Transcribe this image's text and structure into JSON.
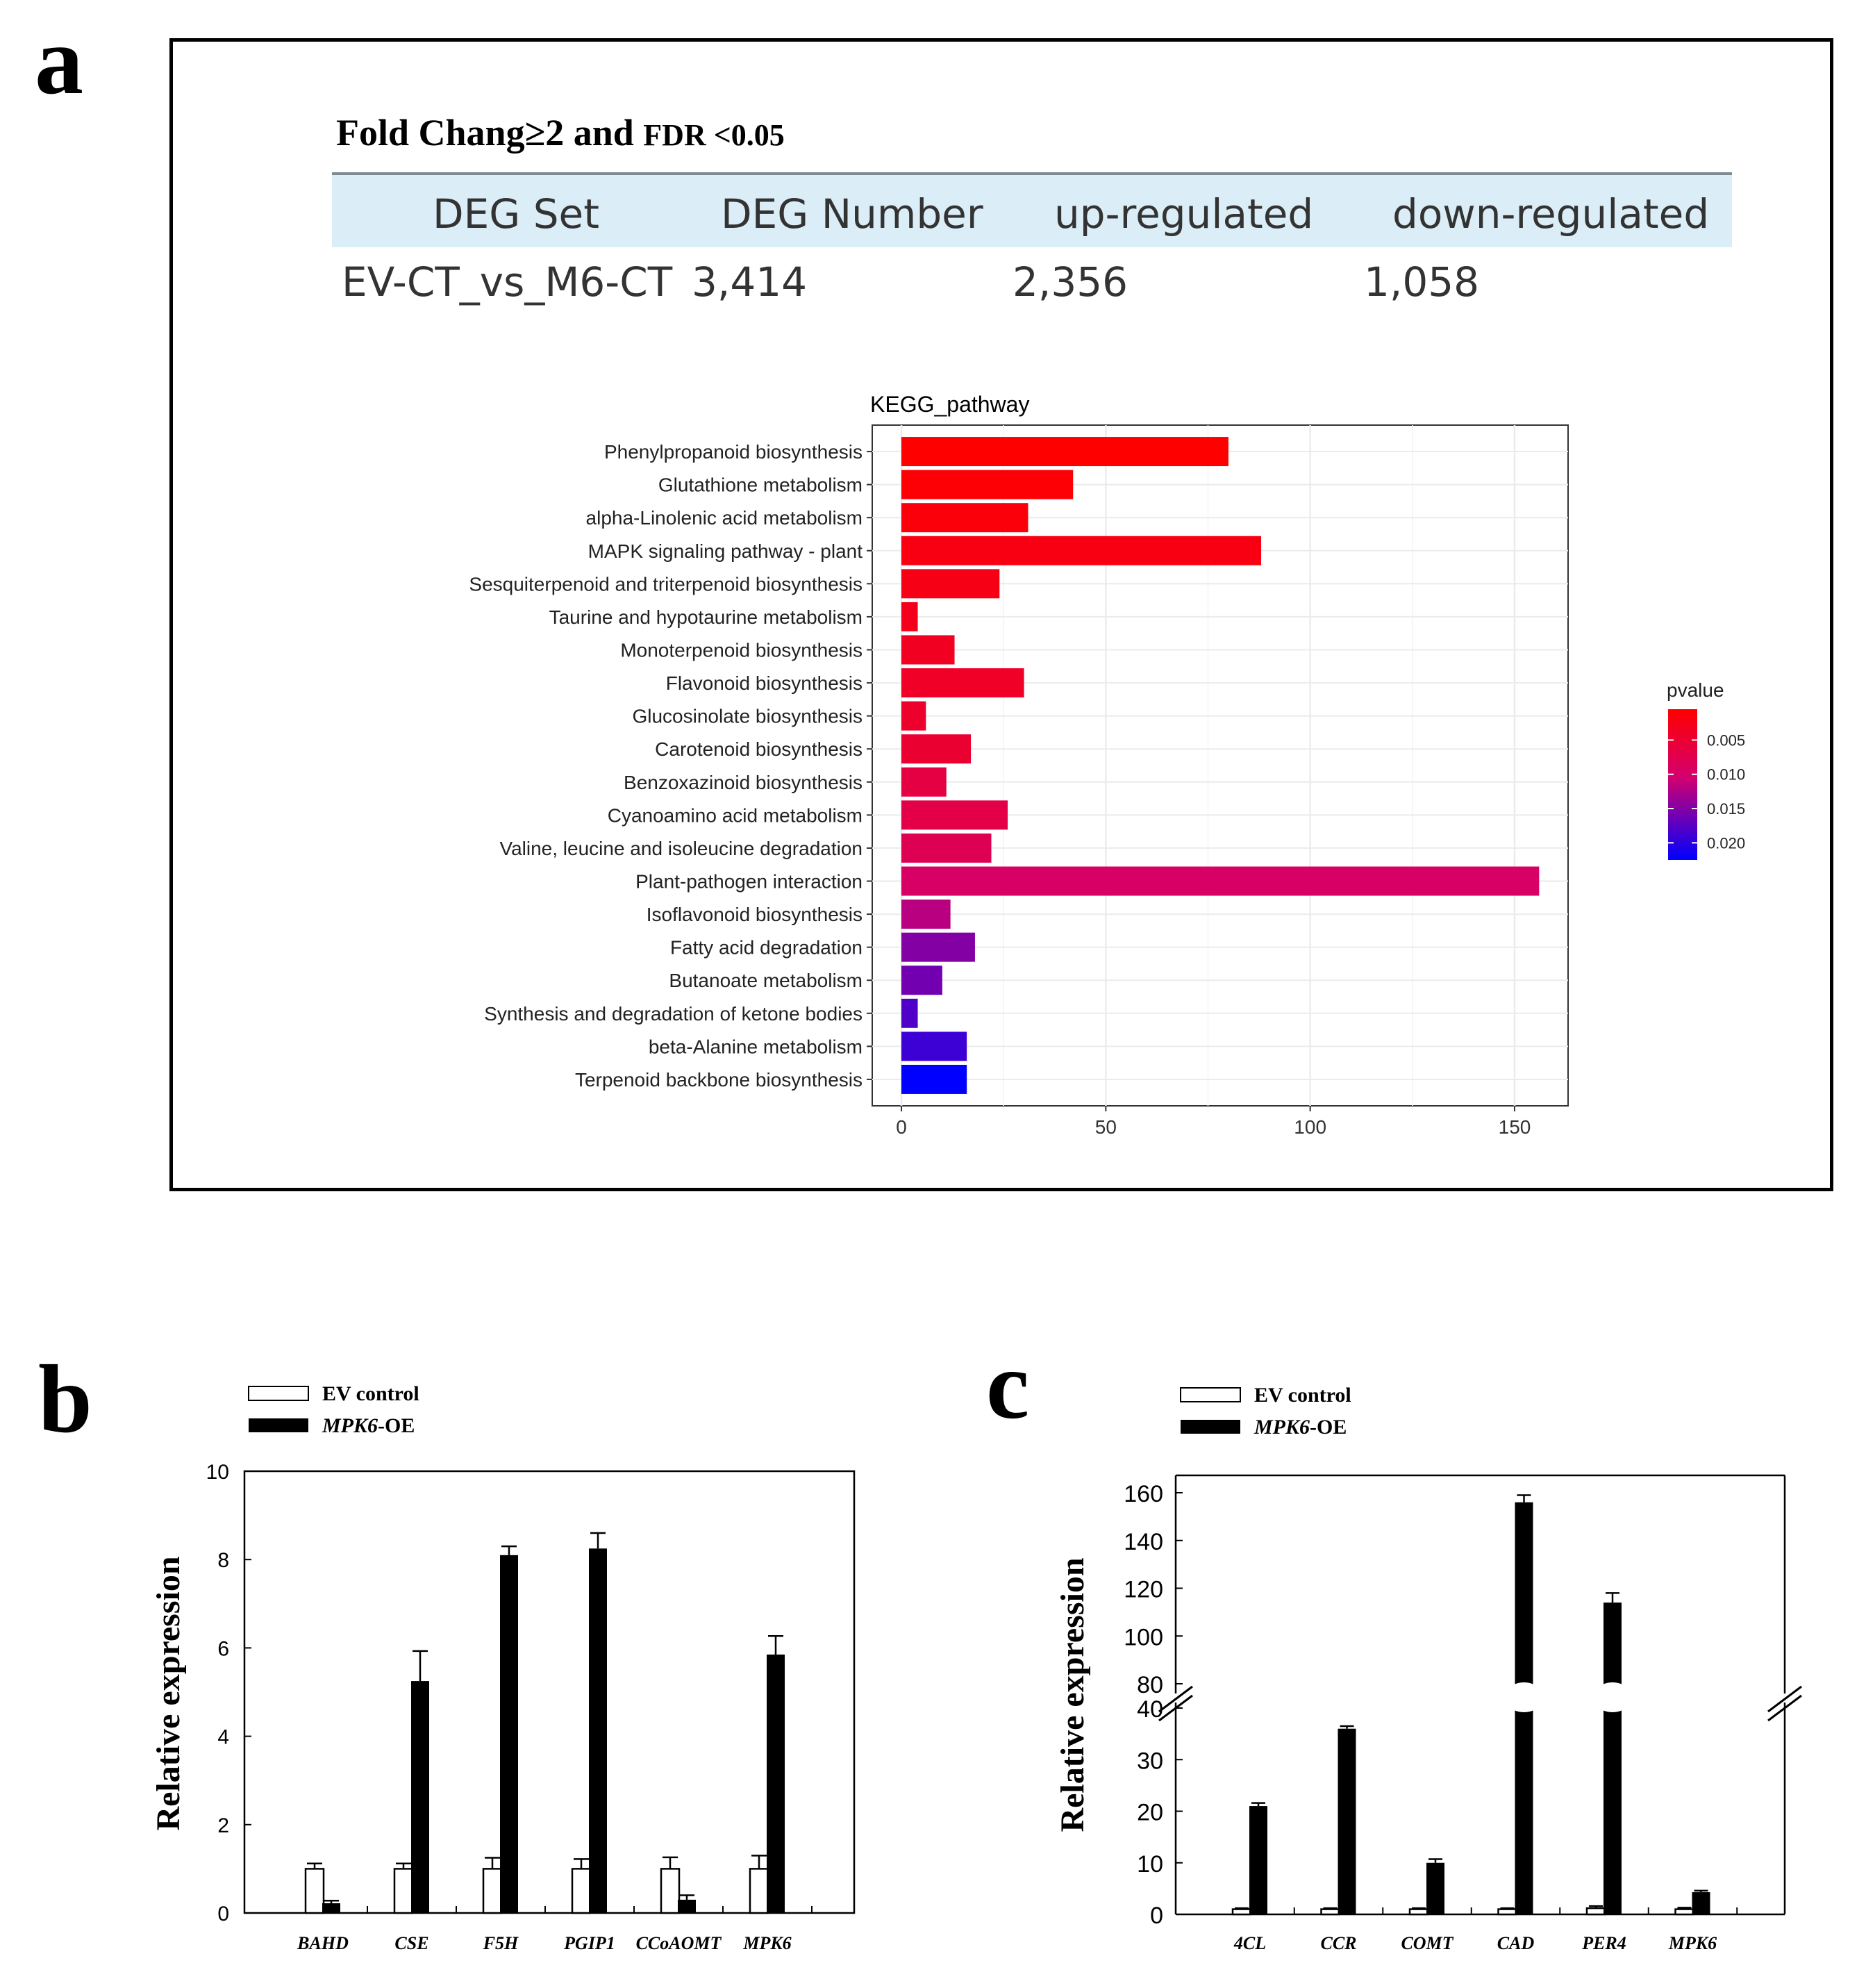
{
  "panels": {
    "a": "a",
    "b": "b",
    "c": "c"
  },
  "criteria": {
    "fold": "Fold Chang≥2",
    "and": "and",
    "fdr": "FDR <0.05"
  },
  "deg_table": {
    "headers": [
      "DEG Set",
      "DEG Number",
      "up-regulated",
      "down-regulated"
    ],
    "row": [
      "EV-CT_vs_M6-CT",
      "3,414",
      "2,356",
      "1,058"
    ]
  },
  "colors": {
    "high": "#ff0000",
    "mid": "#d4006e",
    "low": "#0000ff",
    "bar_black": "#000000",
    "bar_white": "#ffffff",
    "grid": "#ebebeb"
  },
  "chart_data": [
    {
      "type": "bar",
      "orientation": "horizontal",
      "title": "KEGG_pathway",
      "categories": [
        "Phenylpropanoid biosynthesis",
        "Glutathione metabolism",
        "alpha-Linolenic acid metabolism",
        "MAPK signaling pathway - plant",
        "Sesquiterpenoid and triterpenoid biosynthesis",
        "Taurine and hypotaurine metabolism",
        "Monoterpenoid biosynthesis",
        "Flavonoid biosynthesis",
        "Glucosinolate biosynthesis",
        "Carotenoid biosynthesis",
        "Benzoxazinoid biosynthesis",
        "Cyanoamino acid metabolism",
        "Valine, leucine and isoleucine degradation",
        "Plant-pathogen interaction",
        "Isoflavonoid biosynthesis",
        "Fatty acid degradation",
        "Butanoate metabolism",
        "Synthesis and degradation of ketone bodies",
        "beta-Alanine metabolism",
        "Terpenoid backbone biosynthesis"
      ],
      "values": [
        80,
        42,
        31,
        88,
        24,
        4,
        13,
        30,
        6,
        17,
        11,
        26,
        22,
        156,
        12,
        18,
        10,
        4,
        16,
        16
      ],
      "pvalues": [
        0.0005,
        0.001,
        0.0015,
        0.002,
        0.0025,
        0.003,
        0.0035,
        0.004,
        0.0045,
        0.005,
        0.0065,
        0.007,
        0.008,
        0.0095,
        0.012,
        0.015,
        0.016,
        0.018,
        0.019,
        0.0225
      ],
      "xlim": [
        0,
        165
      ],
      "xticks": [
        "0",
        "50",
        "100",
        "150"
      ],
      "xtick_values": [
        0,
        50,
        100,
        150
      ],
      "legend": {
        "title": "pvalue",
        "labels": [
          "0.005",
          "0.010",
          "0.015",
          "0.020"
        ],
        "values": [
          0.005,
          0.01,
          0.015,
          0.02
        ],
        "range": [
          0.0005,
          0.0225
        ],
        "position": "right"
      },
      "grid": true
    },
    {
      "type": "bar",
      "categories": [
        "BAHD",
        "CSE",
        "F5H",
        "PGIP1",
        "CCoAOMT",
        "MPK6"
      ],
      "series": [
        {
          "name": "EV control",
          "values": [
            1.0,
            1.0,
            1.0,
            1.0,
            1.0,
            1.0
          ],
          "errors": [
            0.12,
            0.12,
            0.25,
            0.22,
            0.26,
            0.3
          ]
        },
        {
          "name": "MPK6-OE",
          "name_italic": "MPK6",
          "name_suffix": "-OE",
          "values": [
            0.22,
            5.25,
            8.1,
            8.25,
            0.3,
            5.85
          ],
          "errors": [
            0.06,
            0.68,
            0.2,
            0.35,
            0.1,
            0.42
          ]
        }
      ],
      "ylabel": "Relative expression",
      "ylim": [
        0,
        10
      ],
      "yticks": [
        "0",
        "2",
        "4",
        "6",
        "8",
        "10"
      ],
      "ytick_values": [
        0,
        2,
        4,
        6,
        8,
        10
      ],
      "legend": {
        "position": "top-left"
      }
    },
    {
      "type": "bar",
      "broken_axis": true,
      "categories": [
        "4CL",
        "CCR",
        "COMT",
        "CAD",
        "PER4",
        "MPK6"
      ],
      "series": [
        {
          "name": "EV control",
          "values": [
            1.0,
            1.0,
            1.0,
            1.0,
            1.2,
            1.0
          ],
          "errors": [
            0.2,
            0.2,
            0.2,
            0.2,
            0.4,
            0.3
          ]
        },
        {
          "name": "MPK6-OE",
          "name_italic": "MPK6",
          "name_suffix": "-OE",
          "values": [
            21,
            36,
            10,
            156,
            114,
            4.3
          ],
          "errors": [
            0.6,
            0.5,
            0.7,
            3,
            4,
            0.3
          ]
        }
      ],
      "ylabel": "Relative expression",
      "lower_ylim": [
        0,
        40
      ],
      "upper_ylim": [
        80,
        165
      ],
      "yticks_lower": [
        "0",
        "10",
        "20",
        "30",
        "40"
      ],
      "ytick_values_lower": [
        0,
        10,
        20,
        30,
        40
      ],
      "yticks_upper": [
        "80",
        "100",
        "120",
        "140",
        "160"
      ],
      "ytick_values_upper": [
        80,
        100,
        120,
        140,
        160
      ],
      "legend": {
        "position": "top-left"
      }
    }
  ]
}
